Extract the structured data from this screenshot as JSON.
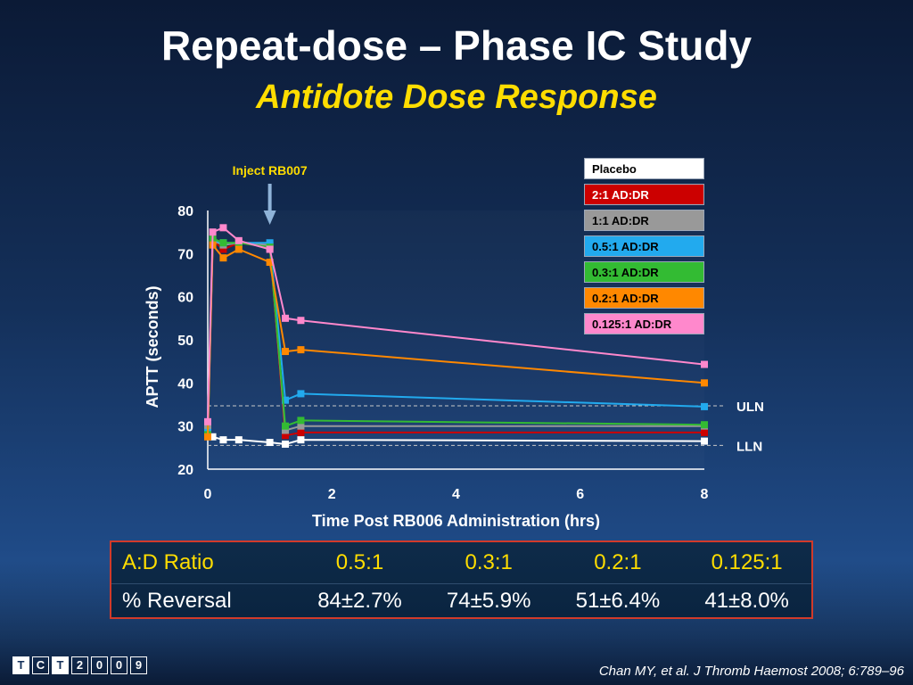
{
  "title": "Repeat-dose – Phase IC Study",
  "subtitle": "Antidote Dose Response",
  "chart_data": {
    "type": "line",
    "xlabel": "Time Post RB006 Administration (hrs)",
    "ylabel": "APTT (seconds)",
    "xlim": [
      0,
      8
    ],
    "ylim": [
      20,
      80
    ],
    "xticks": [
      "0",
      "2",
      "4",
      "6",
      "8"
    ],
    "yticks": [
      "20",
      "30",
      "40",
      "50",
      "60",
      "70",
      "80"
    ],
    "grid": false,
    "legend_position": "top-right",
    "annotations": {
      "inject": "Inject RB007",
      "inject_x": 1,
      "uln_label": "ULN",
      "uln_value": 34.7,
      "lln_label": "LLN",
      "lln_value": 25.5
    },
    "series": [
      {
        "name": "Placebo",
        "color": "#ffffff",
        "text_color": "#000000",
        "x": [
          0,
          0.08,
          0.25,
          0.5,
          1,
          1.25,
          1.5,
          8
        ],
        "y": [
          29,
          27.5,
          26.8,
          26.8,
          26.2,
          25.8,
          26.8,
          26.5
        ]
      },
      {
        "name": "2:1 AD:DR",
        "color": "#cc0000",
        "text_color": "#ffffff",
        "x": [
          0,
          0.08,
          0.25,
          0.5,
          1,
          1.25,
          1.5,
          8
        ],
        "y": [
          30,
          73,
          71,
          72.5,
          71.5,
          27.8,
          28.5,
          28.5
        ]
      },
      {
        "name": "1:1 AD:DR",
        "color": "#999999",
        "text_color": "#000000",
        "x": [
          0,
          0.08,
          0.25,
          0.5,
          1,
          1.25,
          1.5,
          8
        ],
        "y": [
          29.5,
          73,
          72,
          72.5,
          72,
          29,
          30,
          30
        ]
      },
      {
        "name": "0.5:1 AD:DR",
        "color": "#22aaee",
        "text_color": "#000000",
        "x": [
          0,
          0.08,
          0.25,
          0.5,
          1,
          1.25,
          1.5,
          8
        ],
        "y": [
          28.5,
          73,
          72.5,
          72.5,
          72.5,
          36,
          37.5,
          34.5
        ]
      },
      {
        "name": "0.3:1 AD:DR",
        "color": "#33bb33",
        "text_color": "#000000",
        "x": [
          0,
          0.08,
          0.25,
          0.5,
          1,
          1.25,
          1.5,
          8
        ],
        "y": [
          28,
          73.5,
          72.5,
          72.5,
          71.5,
          30,
          31.3,
          30.3
        ]
      },
      {
        "name": "0.2:1 AD:DR",
        "color": "#ff8800",
        "text_color": "#000000",
        "x": [
          0,
          0.08,
          0.25,
          0.5,
          1,
          1.25,
          1.5,
          8
        ],
        "y": [
          27.5,
          72,
          69,
          71,
          68,
          47.3,
          47.7,
          40
        ]
      },
      {
        "name": "0.125:1 AD:DR",
        "color": "#ff88cc",
        "text_color": "#000000",
        "x": [
          0,
          0.08,
          0.25,
          0.5,
          1,
          1.25,
          1.5,
          8
        ],
        "y": [
          31,
          75,
          76,
          73,
          71,
          55,
          54.5,
          44.3
        ]
      }
    ]
  },
  "table": {
    "ratio_label": "A:D Ratio",
    "reversal_label": "% Reversal",
    "columns": [
      {
        "ratio": "0.5:1",
        "reversal": "84±2.7%"
      },
      {
        "ratio": "0.3:1",
        "reversal": "74±5.9%"
      },
      {
        "ratio": "0.2:1",
        "reversal": "51±6.4%"
      },
      {
        "ratio": "0.125:1",
        "reversal": "41±8.0%"
      }
    ]
  },
  "citation": "Chan MY, et al. J Thromb Haemost 2008; 6:789–96",
  "logo": {
    "letters": [
      "T",
      "C",
      "T",
      "2",
      "0",
      "0",
      "9"
    ]
  }
}
